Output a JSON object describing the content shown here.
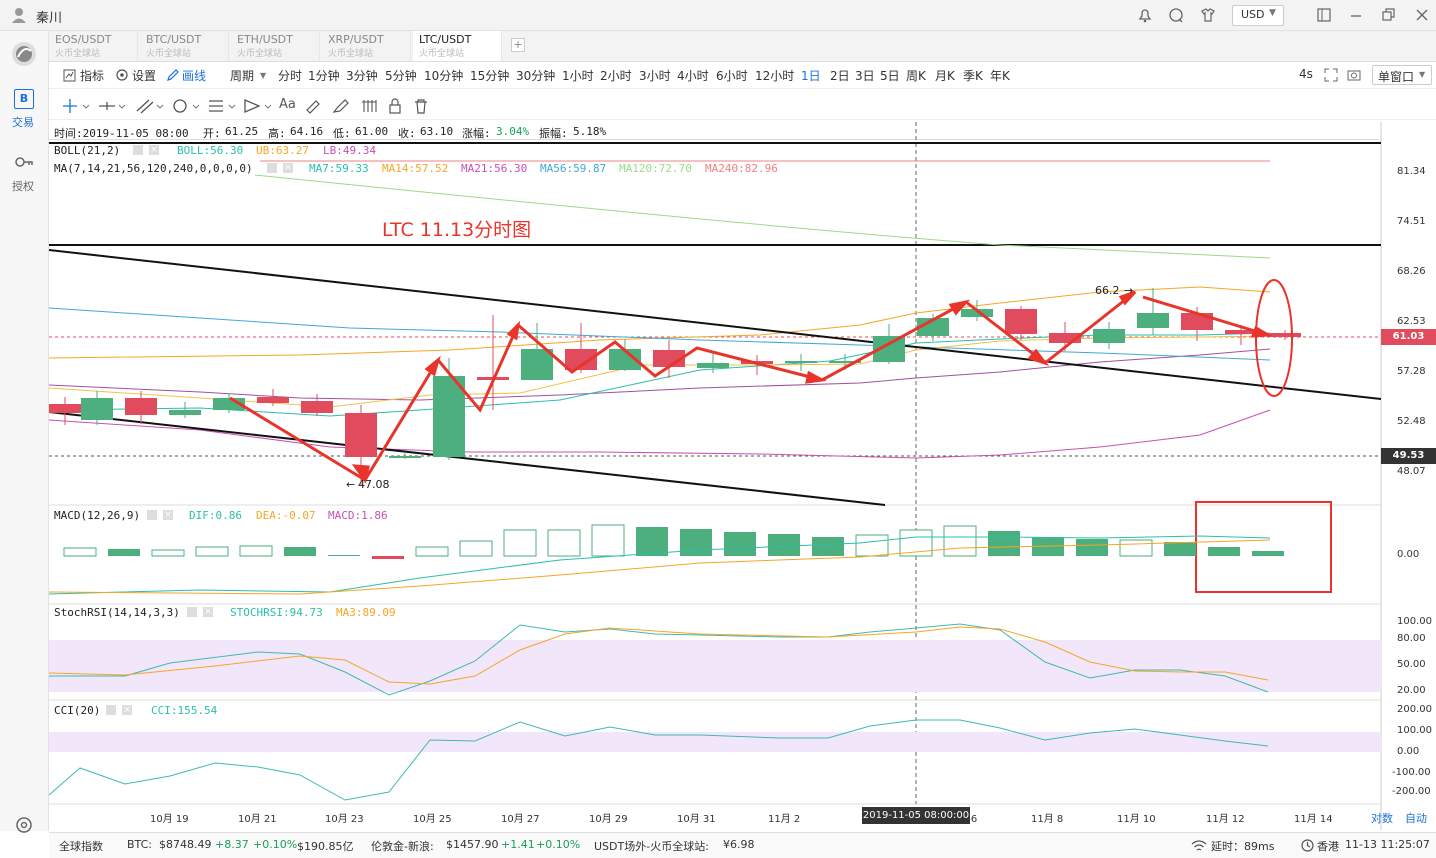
{
  "window": {
    "title": "秦川",
    "currency": "USD"
  },
  "sidebar": {
    "trade": "交易",
    "auth": "授权",
    "trade_letter": "B"
  },
  "tabs": [
    {
      "pair": "EOS/USDT",
      "sub": "火币全球站",
      "active": false
    },
    {
      "pair": "BTC/USDT",
      "sub": "火币全球站",
      "active": false
    },
    {
      "pair": "ETH/USDT",
      "sub": "火币全球站",
      "active": false
    },
    {
      "pair": "XRP/USDT",
      "sub": "火币全球站",
      "active": false
    },
    {
      "pair": "LTC/USDT",
      "sub": "火币全球站",
      "active": true
    }
  ],
  "toolbar": {
    "indicator": "指标",
    "settings": "设置",
    "draw": "画线",
    "period": "周期",
    "intervals": [
      "分时",
      "1分钟",
      "3分钟",
      "5分钟",
      "10分钟",
      "15分钟",
      "30分钟",
      "1小时",
      "2小时",
      "3小时",
      "4小时",
      "6小时",
      "12小时",
      "1日",
      "2日",
      "3日",
      "5日",
      "周K",
      "月K",
      "季K",
      "年K"
    ],
    "active_interval": "1日",
    "refresh": "4s",
    "window_mode": "单窗口"
  },
  "info": {
    "line": "时间:2019-11-05 08:00",
    "open_label": "开:",
    "open": "61.25",
    "high_label": "高:",
    "high": "64.16",
    "low_label": "低:",
    "low": "61.00",
    "close_label": "收:",
    "close": "63.10",
    "chg_label": "涨幅:",
    "chg": "3.04%",
    "amp_label": "振幅:",
    "amp": "5.18%"
  },
  "boll": {
    "name": "BOLL(21,2)",
    "boll": "BOLL:56.30",
    "ub": "UB:63.27",
    "lb": "LB:49.34"
  },
  "ma": {
    "name": "MA(7,14,21,56,120,240,0,0,0,0)",
    "ma7": "MA7:59.33",
    "ma14": "MA14:57.52",
    "ma21": "MA21:56.30",
    "ma56": "MA56:59.87",
    "ma120": "MA120:72.70",
    "ma240": "MA240:82.96"
  },
  "annotation": {
    "title": "LTC 11.13分时图",
    "high_mark": "66.2",
    "low_mark": "47.08"
  },
  "price_axis": [
    "81.34",
    "74.51",
    "68.26",
    "62.53",
    "57.28",
    "52.48",
    "48.07"
  ],
  "price_boxes": {
    "current": "61.03",
    "low": "49.53"
  },
  "macd": {
    "name": "MACD(12,26,9)",
    "dif": "DIF:0.86",
    "dea": "DEA:-0.07",
    "macd": "MACD:1.86",
    "axis": "0.00"
  },
  "stochrsi": {
    "name": "StochRSI(14,14,3,3)",
    "stoch": "STOCHRSI:94.73",
    "ma3": "MA3:89.09",
    "axis": [
      "100.00",
      "80.00",
      "50.00",
      "20.00"
    ]
  },
  "cci": {
    "name": "CCI(20)",
    "cci": "CCI:155.54",
    "axis": [
      "200.00",
      "100.00",
      "0.00",
      "-100.00",
      "-200.00"
    ]
  },
  "x_axis": [
    "10月 19",
    "10月 21",
    "10月 23",
    "10月 25",
    "10月 27",
    "10月 29",
    "10月 31",
    "11月 2",
    "11月 6",
    "11月 8",
    "11月 10",
    "11月 12",
    "11月 14"
  ],
  "crosshair_date": "2019-11-05 08:00:00",
  "axis_buttons": {
    "log": "对数",
    "auto": "自动"
  },
  "status": {
    "index": "全球指数",
    "btc": "BTC:",
    "btc_price": "$8748.49",
    "btc_chg": "+8.37",
    "btc_pct": "+0.10%",
    "btc_vol": "$190.85亿",
    "gold": "伦敦金-新浪:",
    "gold_price": "$1457.90",
    "gold_chg": "+1.41",
    "gold_pct": "+0.10%",
    "usdt": "USDT场外-火币全球站:",
    "usdt_price": "¥6.98",
    "latency": "延时：89ms",
    "region": "香港",
    "time": "11-13 11:25:07"
  },
  "colors": {
    "up": "#4caf7d",
    "down": "#e04c5d",
    "red_ann": "#e8342a"
  }
}
